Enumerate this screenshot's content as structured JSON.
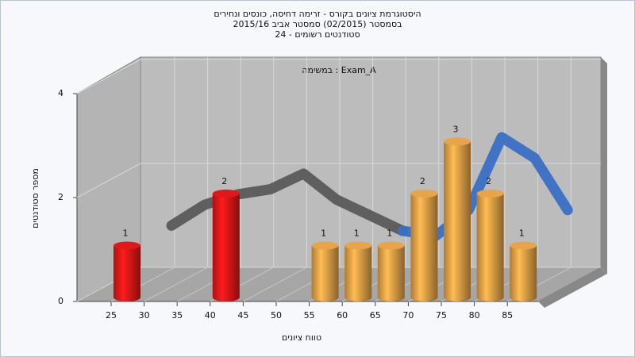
{
  "chart_data": {
    "type": "bar",
    "title": [
      "היסטוגרמת ציונים בקורס - זרימה דחיסה, כונסים ונחירים",
      "בסמסטר (02/2015)  סמסטר אביב 2015/16",
      "סטודנטים רשומים - 24"
    ],
    "subtitle": "במשימה : Exam_A",
    "x_label": "טווח ציונים",
    "y_label": "מספר סטודנטים",
    "categories": [
      "25",
      "30",
      "35",
      "40",
      "45",
      "50",
      "55",
      "60",
      "65",
      "70",
      "75",
      "80",
      "85"
    ],
    "values": [
      1,
      0,
      0,
      2,
      0,
      0,
      1,
      1,
      1,
      2,
      3,
      2,
      1
    ],
    "colors": [
      "#e01818",
      "#e01818",
      "#e01818",
      "#e01818",
      "#e8a448",
      "#e8a448",
      "#e8a448",
      "#e8a448",
      "#e8a448",
      "#e8a448",
      "#e8a448",
      "#e8a448",
      "#e8a448"
    ],
    "curves": [
      {
        "color": "#5a5a5a",
        "values": [
          1.0,
          1.4,
          1.6,
          1.7,
          2.0,
          1.5,
          1.2,
          0.9,
          null,
          null,
          null,
          null,
          null
        ]
      },
      {
        "color": "#3a6fc4",
        "values": [
          null,
          null,
          null,
          null,
          null,
          null,
          null,
          0.9,
          0.8,
          1.3,
          2.7,
          2.3,
          1.3
        ]
      }
    ],
    "ylim": [
      0,
      4
    ],
    "yticks": [
      0,
      2,
      4
    ],
    "grid": true
  }
}
